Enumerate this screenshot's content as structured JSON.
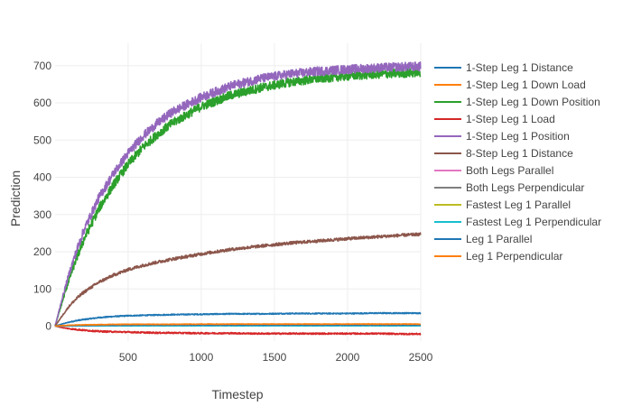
{
  "chart_data": {
    "type": "line",
    "title": "",
    "xlabel": "Timestep",
    "ylabel": "Prediction",
    "xlim": [
      1,
      2500
    ],
    "ylim": [
      -40,
      760
    ],
    "xticks": [
      500,
      1000,
      1500,
      2000,
      2500
    ],
    "yticks": [
      0,
      100,
      200,
      300,
      400,
      500,
      600,
      700
    ],
    "grid": true,
    "legend_position": "right",
    "x": [
      1,
      50,
      100,
      150,
      200,
      300,
      400,
      500,
      600,
      700,
      800,
      1000,
      1200,
      1400,
      1600,
      1800,
      2000,
      2200,
      2400,
      2500
    ],
    "series": [
      {
        "name": "1-Step Leg 1 Distance",
        "color": "#1f77b4",
        "noise": 1.5,
        "values": [
          0,
          6,
          11,
          15,
          18,
          23,
          26,
          28,
          29,
          30,
          31,
          32,
          33,
          33,
          34,
          34,
          34,
          35,
          35,
          35
        ]
      },
      {
        "name": "1-Step Leg 1 Down Load",
        "color": "#ff7f0e",
        "noise": 0.8,
        "values": [
          0,
          1,
          2,
          2,
          3,
          3,
          4,
          4,
          4,
          4,
          4,
          4,
          5,
          5,
          5,
          5,
          5,
          5,
          5,
          5
        ]
      },
      {
        "name": "1-Step Leg 1 Down Position",
        "color": "#2ca02c",
        "noise": 12,
        "values": [
          0,
          65,
          130,
          185,
          235,
          315,
          380,
          435,
          480,
          515,
          545,
          590,
          620,
          640,
          655,
          665,
          672,
          677,
          680,
          682
        ]
      },
      {
        "name": "1-Step Leg 1 Load",
        "color": "#d62728",
        "noise": 2,
        "values": [
          0,
          -4,
          -7,
          -9,
          -11,
          -14,
          -15,
          -16,
          -17,
          -18,
          -18,
          -19,
          -19,
          -20,
          -20,
          -20,
          -20,
          -20,
          -21,
          -21
        ]
      },
      {
        "name": "1-Step Leg 1 Position",
        "color": "#9467bd",
        "noise": 12,
        "values": [
          0,
          75,
          145,
          205,
          260,
          345,
          410,
          465,
          510,
          545,
          575,
          615,
          645,
          665,
          677,
          685,
          690,
          694,
          697,
          698
        ]
      },
      {
        "name": "8-Step Leg 1 Distance",
        "color": "#8c564b",
        "noise": 4,
        "values": [
          0,
          28,
          55,
          75,
          92,
          118,
          137,
          152,
          163,
          172,
          180,
          194,
          206,
          215,
          223,
          229,
          235,
          240,
          245,
          247
        ]
      },
      {
        "name": "Both Legs Parallel",
        "color": "#e377c2",
        "noise": 0.5,
        "values": [
          0,
          0.5,
          1,
          1,
          1,
          1.5,
          1.5,
          1.5,
          2,
          2,
          2,
          2,
          2,
          2,
          2,
          2,
          2,
          2,
          2,
          2
        ]
      },
      {
        "name": "Both Legs Perpendicular",
        "color": "#7f7f7f",
        "noise": 0.5,
        "values": [
          0,
          0.5,
          1,
          1,
          1.5,
          1.5,
          2,
          2,
          2,
          2,
          2,
          2.5,
          2.5,
          2.5,
          2.5,
          2.5,
          2.5,
          2.5,
          2.5,
          2.5
        ]
      },
      {
        "name": "Fastest Leg 1 Parallel",
        "color": "#bcbd22",
        "noise": 0.8,
        "values": [
          0,
          1,
          2,
          2.5,
          3,
          3,
          3.5,
          3.5,
          4,
          4,
          4,
          4,
          4,
          4.5,
          4.5,
          4.5,
          4.5,
          4.5,
          4.5,
          4.5
        ]
      },
      {
        "name": "Fastest Leg 1 Perpendicular",
        "color": "#17becf",
        "noise": 0.5,
        "values": [
          0,
          0.5,
          0.5,
          1,
          1,
          1,
          1,
          1,
          1,
          1,
          1,
          1,
          1,
          1,
          1,
          1,
          1,
          1,
          1,
          1
        ]
      },
      {
        "name": "Leg 1 Parallel",
        "color": "#1f77b4",
        "noise": 0.6,
        "values": [
          0,
          1,
          1.5,
          2,
          2,
          2.5,
          2.5,
          2.5,
          3,
          3,
          3,
          3,
          3,
          3,
          3,
          3,
          3,
          3,
          3,
          3
        ]
      },
      {
        "name": "Leg 1 Perpendicular",
        "color": "#ff7f0e",
        "noise": 0.8,
        "values": [
          0,
          1.5,
          2.5,
          3,
          3.5,
          4,
          4.5,
          5,
          5,
          5,
          5,
          5.5,
          5.5,
          5.5,
          5.5,
          5.5,
          5.5,
          5.5,
          5.5,
          5.5
        ]
      }
    ]
  }
}
